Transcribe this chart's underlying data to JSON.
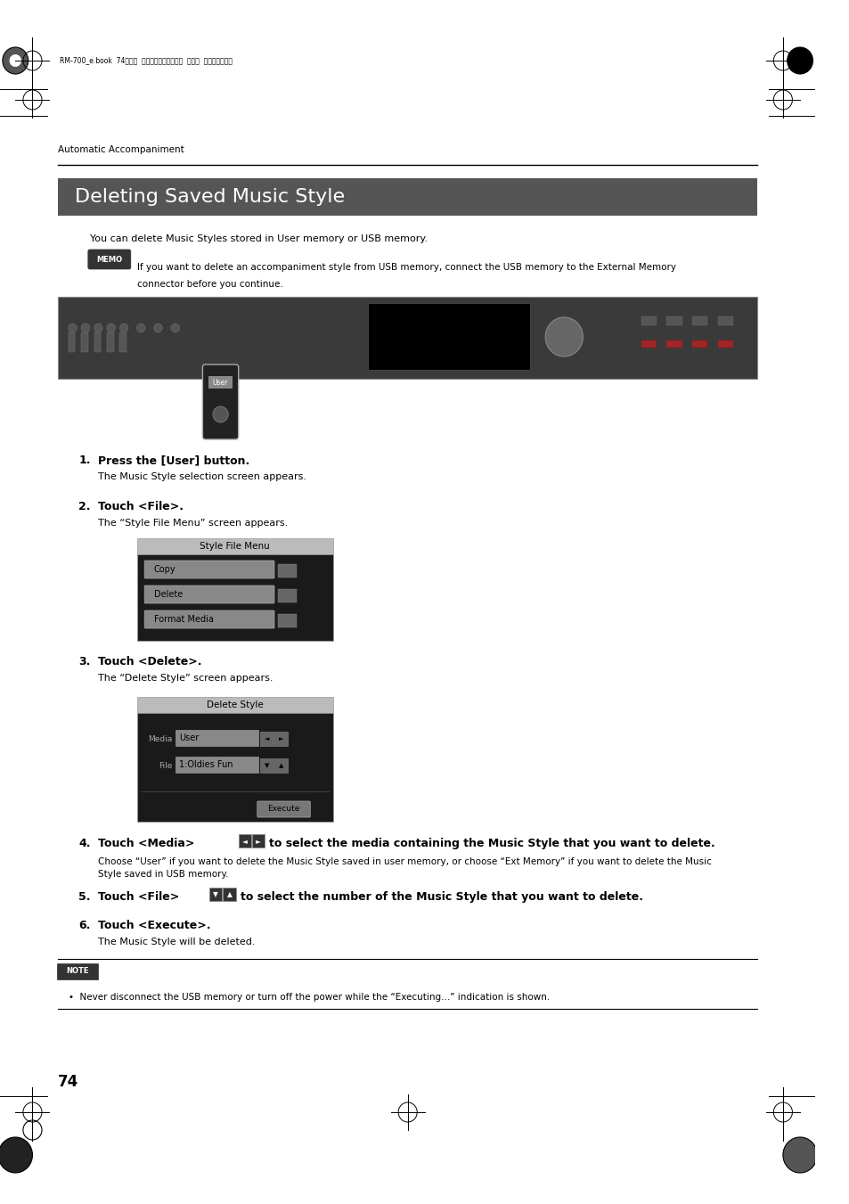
{
  "page_width": 9.54,
  "page_height": 13.51,
  "bg_color": "#ffffff",
  "header_text": "RM-700_e.book  74ページ  ２００９年３月１８日  水曜日  午前１１時５分",
  "section_label": "Automatic Accompaniment",
  "title": "Deleting Saved Music Style",
  "title_bg": "#555555",
  "title_color": "#ffffff",
  "intro_text": "You can delete Music Styles stored in User memory or USB memory.",
  "memo_text_line1": "If you want to delete an accompaniment style from USB memory, connect the USB memory to the External Memory",
  "memo_text_line2": "connector before you continue.",
  "note_text": "•  Never disconnect the USB memory or turn off the power while the “Executing...” indication is shown.",
  "page_number": "74",
  "sfm_title": "Style File Menu",
  "sfm_buttons": [
    "Copy",
    "Delete",
    "Format Media"
  ],
  "ds_title": "Delete Style",
  "ds_media_label": "Media",
  "ds_media_value": "User",
  "ds_file_label": "File",
  "ds_file_value": "1:Oldies Fun",
  "ds_execute": "Execute"
}
